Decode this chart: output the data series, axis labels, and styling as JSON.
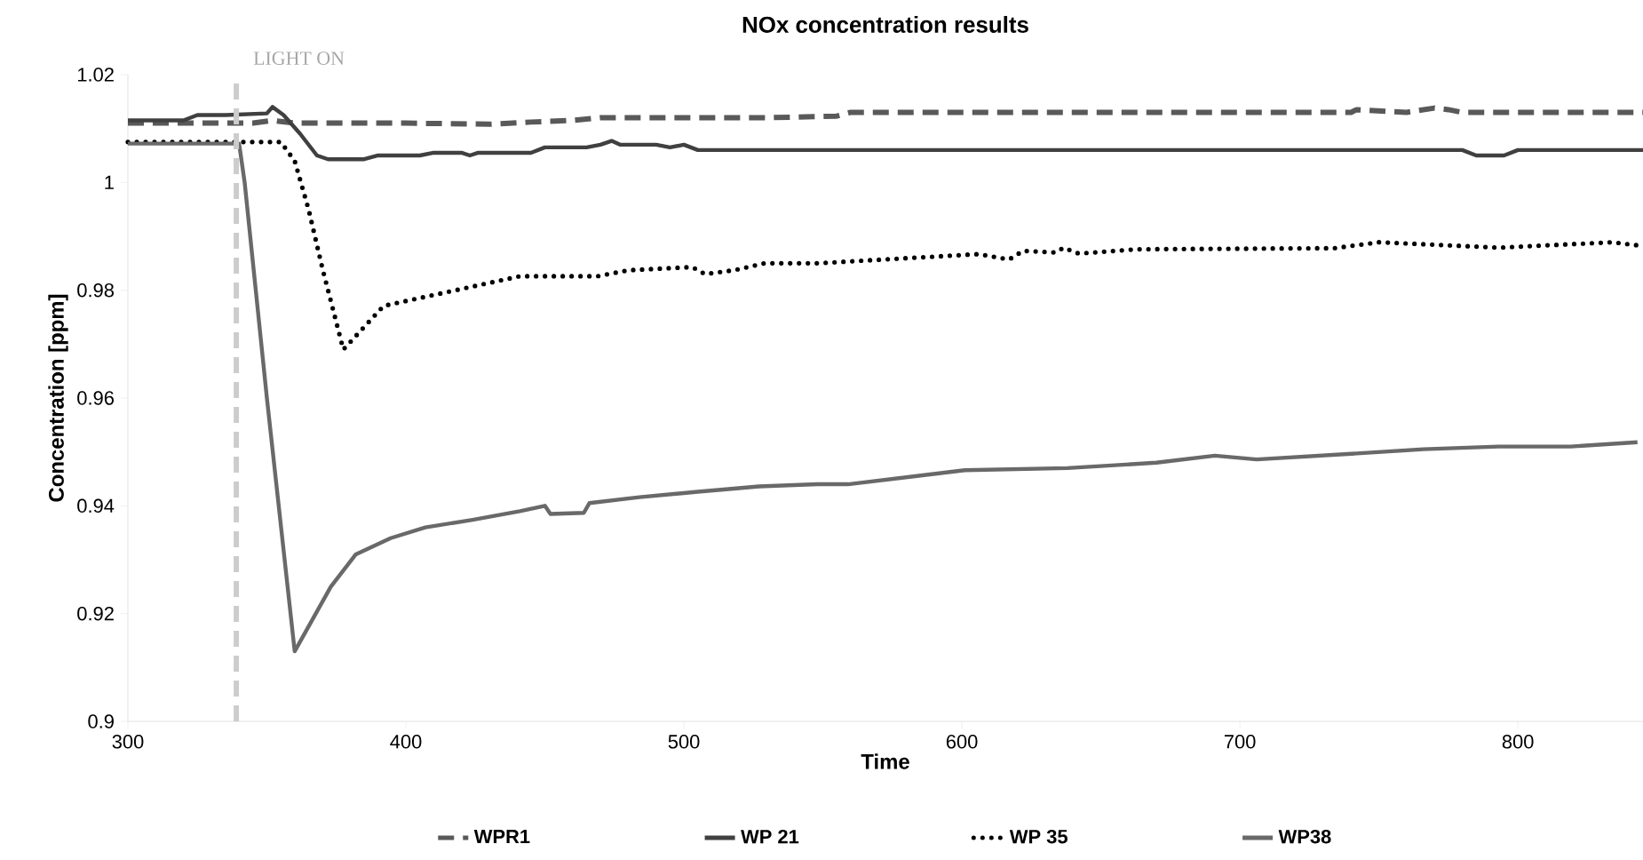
{
  "chart_data": {
    "type": "line",
    "title": "NOx concentration results",
    "xlabel": "Time",
    "ylabel": "Concentration [ppm]",
    "xlim": [
      300,
      845
    ],
    "xticks": [
      300,
      400,
      500,
      600,
      700,
      800
    ],
    "ylim": [
      0.9,
      1.02
    ],
    "yticks": [
      {
        "value": 0.9,
        "label": "0.9"
      },
      {
        "value": 0.92,
        "label": "0.92"
      },
      {
        "value": 0.94,
        "label": "0.94"
      },
      {
        "value": 0.96,
        "label": "0.96"
      },
      {
        "value": 0.98,
        "label": "0.98"
      },
      {
        "value": 1.0,
        "label": "1"
      },
      {
        "value": 1.02,
        "label": "1.02"
      }
    ],
    "grid": false,
    "legend": "bottom",
    "ref_lines": [
      {
        "axis": "x",
        "value": 339,
        "label": "LIGHT ON",
        "color": "#cccccc",
        "line_style": "dashed"
      }
    ],
    "series": [
      {
        "name": "WPR1",
        "color": "#595959",
        "line_style": "dashed",
        "x": [
          300,
          345,
          352,
          360,
          400,
          430,
          445,
          460,
          470,
          530,
          555,
          560,
          700,
          740,
          742,
          760,
          770,
          775,
          780,
          845
        ],
        "values": [
          1.011,
          1.011,
          1.0115,
          1.011,
          1.011,
          1.0108,
          1.0112,
          1.0115,
          1.012,
          1.012,
          1.0123,
          1.013,
          1.013,
          1.013,
          1.0135,
          1.013,
          1.0138,
          1.0135,
          1.013,
          1.013
        ]
      },
      {
        "name": "WP 21",
        "color": "#404040",
        "line_style": "solid",
        "x": [
          300,
          320,
          325,
          335,
          350,
          352,
          356,
          362,
          368,
          372,
          385,
          390,
          405,
          410,
          420,
          423,
          426,
          445,
          450,
          465,
          470,
          474,
          477,
          490,
          495,
          500,
          505,
          780,
          785,
          795,
          800,
          845
        ],
        "values": [
          1.0115,
          1.0115,
          1.0125,
          1.0125,
          1.0128,
          1.014,
          1.0125,
          1.009,
          1.005,
          1.0043,
          1.0043,
          1.005,
          1.005,
          1.0055,
          1.0055,
          1.005,
          1.0055,
          1.0055,
          1.0065,
          1.0065,
          1.007,
          1.0077,
          1.007,
          1.007,
          1.0065,
          1.007,
          1.006,
          1.006,
          1.005,
          1.005,
          1.006,
          1.006
        ]
      },
      {
        "name": "WP 35",
        "color": "#000000",
        "line_style": "dotted",
        "x": [
          300,
          355,
          360,
          365,
          370,
          377.5,
          392,
          411.6,
          441,
          469,
          480,
          503,
          507.6,
          518,
          529,
          548,
          606,
          617,
          622,
          633.7,
          636.6,
          642,
          663,
          734,
          750,
          793,
          834,
          845
        ],
        "values": [
          1.0075,
          1.0075,
          1.004,
          0.995,
          0.984,
          0.969,
          0.9771,
          0.9793,
          0.9826,
          0.9826,
          0.9837,
          0.9843,
          0.983,
          0.9837,
          0.985,
          0.985,
          0.9867,
          0.9857,
          0.9873,
          0.987,
          0.9879,
          0.9868,
          0.9876,
          0.9878,
          0.9889,
          0.9879,
          0.9889,
          0.9882
        ]
      },
      {
        "name": "WP38",
        "color": "#696969",
        "line_style": "solid",
        "x": [
          300,
          340,
          342,
          350,
          360,
          373,
          382,
          394.5,
          407,
          424,
          441,
          450,
          452,
          464,
          466,
          484,
          505,
          527,
          548,
          559,
          601,
          638,
          670,
          691,
          706,
          744.6,
          766,
          793,
          819,
          843
        ],
        "values": [
          1.0072,
          1.0072,
          1.0,
          0.96,
          0.913,
          0.925,
          0.931,
          0.934,
          0.936,
          0.9374,
          0.939,
          0.94,
          0.9385,
          0.9387,
          0.9405,
          0.9416,
          0.9426,
          0.9436,
          0.944,
          0.944,
          0.9466,
          0.947,
          0.948,
          0.9493,
          0.9486,
          0.9498,
          0.9505,
          0.951,
          0.951,
          0.9518
        ]
      }
    ]
  }
}
